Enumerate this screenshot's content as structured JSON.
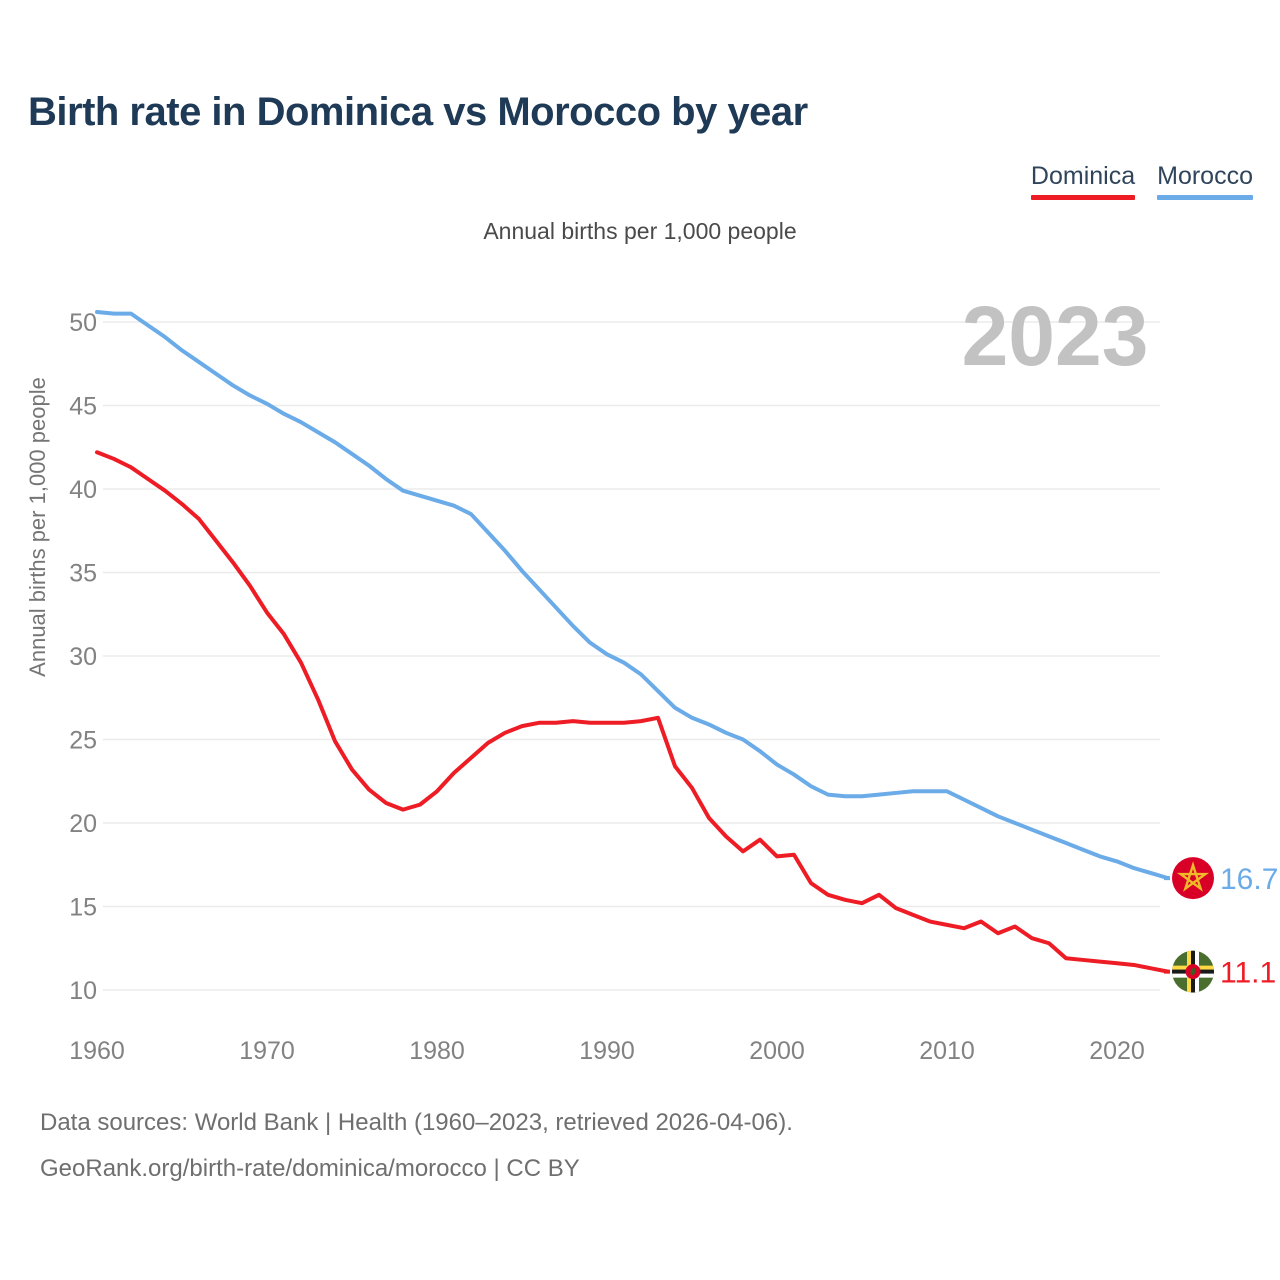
{
  "title": "Birth rate in Dominica vs Morocco by year",
  "subtitle": "Annual births per 1,000 people",
  "legend": [
    {
      "label": "Dominica",
      "color": "#ed1c25"
    },
    {
      "label": "Morocco",
      "color": "#6aabe8"
    }
  ],
  "watermark": "2023",
  "y_axis": {
    "title": "Annual births per 1,000 people",
    "ticks": [
      50,
      45,
      40,
      35,
      30,
      25,
      20,
      15,
      10
    ]
  },
  "x_axis": {
    "ticks": [
      1960,
      1970,
      1980,
      1990,
      2000,
      2010,
      2020
    ]
  },
  "end_labels": {
    "morocco": "16.7",
    "dominica": "11.1"
  },
  "caption": {
    "line1": "Data sources: World Bank | Health (1960–2023, retrieved 2026-04-06).",
    "line2": "GeoRank.org/birth-rate/dominica/morocco | CC BY"
  },
  "chart_data": {
    "type": "line",
    "title": "Birth rate in Dominica vs Morocco by year",
    "subtitle": "Annual births per 1,000 people",
    "xlabel": "",
    "ylabel": "Annual births per 1,000 people",
    "ylim": [
      10,
      50
    ],
    "xlim": [
      1960,
      2023
    ],
    "grid": true,
    "legend_position": "top-right",
    "x": [
      1960,
      1961,
      1962,
      1963,
      1964,
      1965,
      1966,
      1967,
      1968,
      1969,
      1970,
      1971,
      1972,
      1973,
      1974,
      1975,
      1976,
      1977,
      1978,
      1979,
      1980,
      1981,
      1982,
      1983,
      1984,
      1985,
      1986,
      1987,
      1988,
      1989,
      1990,
      1991,
      1992,
      1993,
      1994,
      1995,
      1996,
      1997,
      1998,
      1999,
      2000,
      2001,
      2002,
      2003,
      2004,
      2005,
      2006,
      2007,
      2008,
      2009,
      2010,
      2011,
      2012,
      2013,
      2014,
      2015,
      2016,
      2017,
      2018,
      2019,
      2020,
      2021,
      2022,
      2023
    ],
    "series": [
      {
        "name": "Dominica",
        "color": "#ed1c25",
        "end_label": 11.1,
        "values": [
          42.2,
          41.8,
          41.3,
          40.6,
          39.9,
          39.1,
          38.2,
          36.9,
          35.6,
          34.2,
          32.6,
          31.3,
          29.6,
          27.4,
          24.9,
          23.2,
          22.0,
          21.2,
          20.8,
          21.1,
          21.9,
          23.0,
          23.9,
          24.8,
          25.4,
          25.8,
          26.0,
          26.0,
          26.1,
          26.0,
          26.0,
          26.0,
          26.1,
          26.3,
          23.4,
          22.1,
          20.3,
          19.2,
          18.3,
          19.0,
          18.0,
          18.1,
          16.4,
          15.7,
          15.4,
          15.2,
          15.7,
          14.9,
          14.5,
          14.1,
          13.9,
          13.7,
          14.1,
          13.4,
          13.8,
          13.1,
          12.8,
          11.9,
          11.8,
          11.7,
          11.6,
          11.5,
          11.3,
          11.1
        ]
      },
      {
        "name": "Morocco",
        "color": "#6aabe8",
        "end_label": 16.7,
        "values": [
          50.6,
          50.5,
          50.5,
          49.8,
          49.1,
          48.3,
          47.6,
          46.9,
          46.2,
          45.6,
          45.1,
          44.5,
          44.0,
          43.4,
          42.8,
          42.1,
          41.4,
          40.6,
          39.9,
          39.6,
          39.3,
          39.0,
          38.5,
          37.4,
          36.3,
          35.1,
          34.0,
          32.9,
          31.8,
          30.8,
          30.1,
          29.6,
          28.9,
          27.9,
          26.9,
          26.3,
          25.9,
          25.4,
          25.0,
          24.3,
          23.5,
          22.9,
          22.2,
          21.7,
          21.6,
          21.6,
          21.7,
          21.8,
          21.9,
          21.9,
          21.9,
          21.4,
          20.9,
          20.4,
          20.0,
          19.6,
          19.2,
          18.8,
          18.4,
          18.0,
          17.7,
          17.3,
          17.0,
          16.7
        ]
      }
    ]
  }
}
